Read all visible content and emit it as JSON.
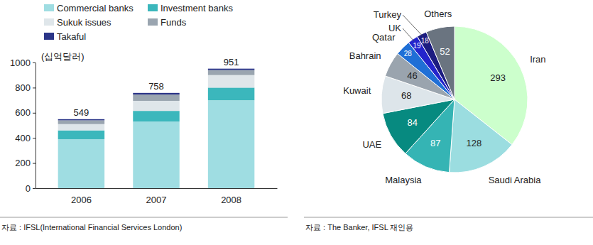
{
  "chart_data": [
    {
      "type": "bar",
      "stacked": true,
      "ylabel": "(십억달러)",
      "categories": [
        "2006",
        "2007",
        "2008"
      ],
      "series": [
        {
          "name": "Commercial banks",
          "color": "#9fdde2",
          "values": [
            390,
            530,
            700
          ]
        },
        {
          "name": "Investment banks",
          "color": "#3bb7bc",
          "values": [
            70,
            85,
            100
          ]
        },
        {
          "name": "Sukuk issues",
          "color": "#dfe6ea",
          "values": [
            50,
            80,
            100
          ]
        },
        {
          "name": "Funds",
          "color": "#9aa5b0",
          "values": [
            30,
            50,
            40
          ]
        },
        {
          "name": "Takaful",
          "color": "#2b3588",
          "values": [
            9,
            13,
            11
          ]
        }
      ],
      "totals": [
        549,
        758,
        951
      ],
      "ylim": [
        0,
        1000
      ],
      "yticks": [
        0,
        200,
        400,
        600,
        800,
        1000
      ],
      "grid": false,
      "legend": "top-left",
      "source": "자료 : IFSL(International Financial Services London)"
    },
    {
      "type": "pie",
      "categories": [
        "Iran",
        "Saudi Arabia",
        "Malaysia",
        "UAE",
        "Kuwait",
        "Bahrain",
        "Qatar",
        "UK",
        "Turkey",
        "Others"
      ],
      "values": [
        293,
        128,
        87,
        84,
        68,
        46,
        28,
        19,
        18,
        52
      ],
      "colors": [
        "#ccffcc",
        "#9bdde0",
        "#35b4b4",
        "#078a80",
        "#dde5ea",
        "#9aa4ae",
        "#1f6fd6",
        "#2424cc",
        "#1c1c80",
        "#6a7480"
      ],
      "data_labels": true,
      "source": "자료 : The Banker, IFSL 재인용"
    }
  ]
}
